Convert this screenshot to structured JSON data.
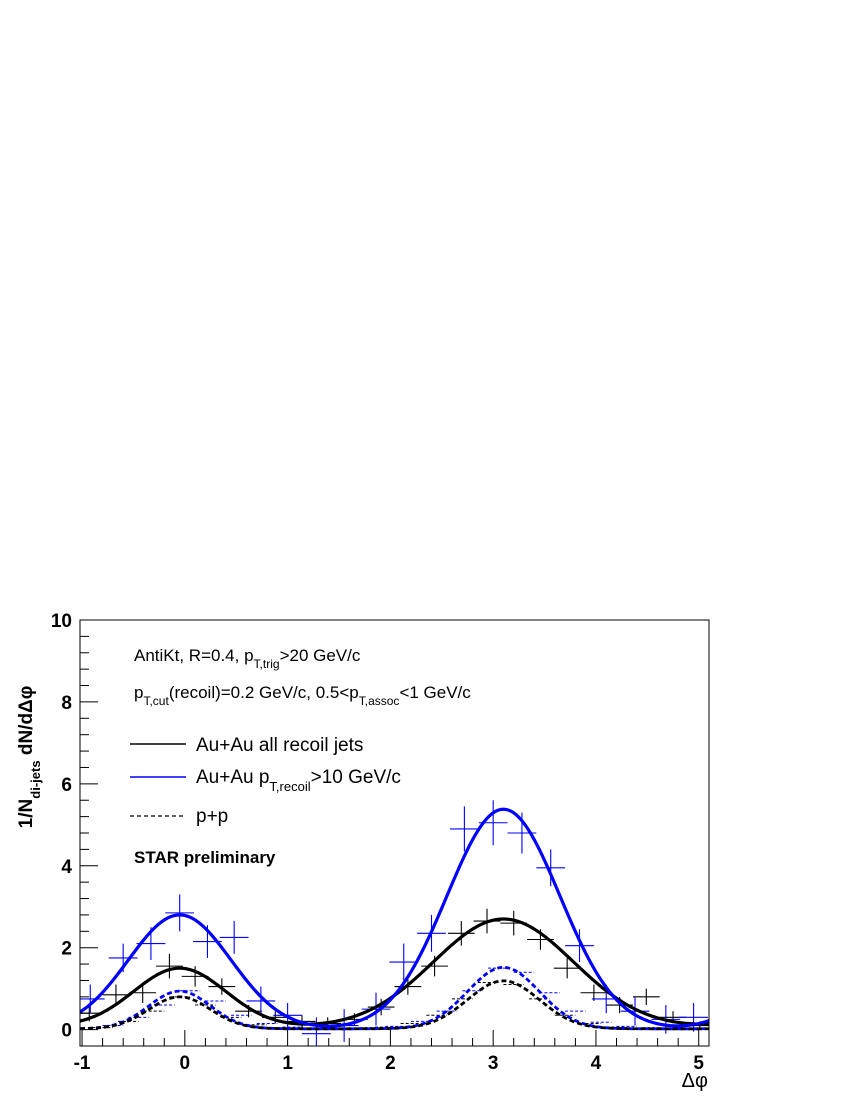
{
  "chart_data": {
    "type": "line",
    "title": "",
    "xlabel": "Δφ",
    "ylabel": {
      "main": "1/N",
      "sub": "di-jets",
      "tail": " dN/dΔφ"
    },
    "xlim": [
      -1.02,
      5.1
    ],
    "ylim": [
      -0.4,
      10
    ],
    "x_ticks": [
      -1,
      0,
      1,
      2,
      3,
      4,
      5
    ],
    "x_tick_labels": [
      "-1",
      "0",
      "1",
      "2",
      "3",
      "4",
      "5"
    ],
    "y_ticks": [
      0,
      2,
      4,
      6,
      8,
      10
    ],
    "y_tick_labels": [
      "0",
      "2",
      "4",
      "6",
      "8",
      "10"
    ],
    "info_line1": {
      "a": "AntiKt, R=0.4, p",
      "sub": "T,trig",
      "b": ">20 GeV/c"
    },
    "info_line2": {
      "a": "p",
      "sub1": "T,cut",
      "b": "(recoil)=0.2 GeV/c, 0.5<p",
      "sub2": "T,assoc",
      "c": "<1 GeV/c"
    },
    "preliminary_label": "STAR preliminary",
    "legend": [
      {
        "text": "Au+Au all recoil jets",
        "color": "#000000",
        "style": "solid"
      },
      {
        "text_a": "Au+Au p",
        "text_sub": "T,recoil",
        "text_b": ">10 GeV/c",
        "color": "#0000ff",
        "style": "solid"
      },
      {
        "text": "p+p",
        "color": "#000000",
        "style": "dashed"
      }
    ],
    "points_black": {
      "color": "#000000",
      "x": [
        -0.93,
        -0.67,
        -0.41,
        -0.15,
        0.1,
        0.36,
        0.62,
        0.88,
        1.14,
        1.39,
        1.65,
        1.91,
        2.17,
        2.43,
        2.69,
        2.94,
        3.2,
        3.46,
        3.72,
        3.98,
        4.23,
        4.49,
        4.75,
        5.01
      ],
      "y": [
        0.4,
        0.85,
        0.9,
        1.55,
        1.3,
        1.05,
        0.45,
        0.3,
        0.2,
        0.15,
        0.25,
        0.55,
        1.05,
        1.55,
        2.35,
        2.65,
        2.6,
        2.2,
        1.5,
        0.9,
        0.6,
        0.8,
        0.3,
        0.1
      ],
      "ex": 0.13,
      "ey": [
        0.2,
        0.25,
        0.25,
        0.3,
        0.25,
        0.2,
        0.15,
        0.15,
        0.15,
        0.15,
        0.15,
        0.2,
        0.2,
        0.25,
        0.3,
        0.3,
        0.3,
        0.25,
        0.25,
        0.2,
        0.2,
        0.2,
        0.15,
        0.1
      ]
    },
    "points_blue": {
      "color": "#0000ff",
      "x": [
        -0.92,
        -0.6,
        -0.33,
        -0.05,
        0.22,
        0.48,
        0.74,
        1.0,
        1.28,
        1.55,
        1.86,
        2.13,
        2.4,
        2.72,
        3.0,
        3.28,
        3.56,
        3.84,
        4.1,
        4.38,
        4.68,
        4.95
      ],
      "y": [
        0.75,
        1.75,
        2.1,
        2.85,
        2.15,
        2.25,
        0.7,
        0.35,
        -0.1,
        0.1,
        0.5,
        1.65,
        2.35,
        4.9,
        5.05,
        4.8,
        3.95,
        2.05,
        0.75,
        0.45,
        0.25,
        0.3
      ],
      "ex": 0.14,
      "ey": [
        0.35,
        0.35,
        0.4,
        0.45,
        0.4,
        0.4,
        0.35,
        0.3,
        0.4,
        0.4,
        0.4,
        0.45,
        0.45,
        0.55,
        0.55,
        0.5,
        0.45,
        0.4,
        0.35,
        0.35,
        0.35,
        0.35
      ]
    },
    "pp_black": {
      "color": "#000000",
      "x": [
        -0.8,
        -0.55,
        -0.3,
        -0.05,
        0.2,
        0.45,
        0.7,
        0.95,
        1.2,
        1.45,
        1.7,
        1.95,
        2.2,
        2.45,
        2.7,
        2.95,
        3.2,
        3.45,
        3.7,
        3.95,
        4.2,
        4.45,
        4.7,
        4.95
      ],
      "y": [
        0.05,
        0.2,
        0.45,
        0.8,
        0.6,
        0.3,
        0.12,
        0.05,
        0.03,
        0.03,
        0.03,
        0.06,
        0.15,
        0.35,
        0.75,
        1.15,
        1.1,
        0.75,
        0.35,
        0.15,
        0.06,
        0.04,
        0.03,
        0.03
      ],
      "ex": 0.1
    },
    "pp_blue": {
      "color": "#0000ff",
      "x": [
        -0.7,
        -0.45,
        -0.2,
        0.05,
        0.3,
        0.55,
        0.8,
        1.05,
        1.3,
        1.55,
        1.8,
        2.05,
        2.3,
        2.55,
        2.8,
        3.05,
        3.3,
        3.55,
        3.8,
        4.05,
        4.3,
        4.55,
        4.8,
        5.05
      ],
      "y": [
        0.1,
        0.3,
        0.6,
        0.95,
        0.7,
        0.35,
        0.15,
        0.06,
        0.04,
        0.04,
        0.05,
        0.08,
        0.2,
        0.45,
        0.95,
        1.5,
        1.4,
        0.9,
        0.45,
        0.18,
        0.08,
        0.05,
        0.04,
        0.04
      ],
      "ex": 0.1
    },
    "curves": [
      {
        "name": "Au+Au all recoil jets",
        "color": "#000000",
        "style": "solid",
        "width": 3.2,
        "baseline": 0.05,
        "peaks": [
          {
            "mu": -0.05,
            "amp": 1.45,
            "sigma": 0.45
          },
          {
            "mu": 3.1,
            "amp": 2.65,
            "sigma": 0.68
          }
        ]
      },
      {
        "name": "Au+Au pT,recoil>10 GeV/c",
        "color": "#0000ff",
        "style": "solid",
        "width": 3.2,
        "baseline": 0.0,
        "peaks": [
          {
            "mu": -0.05,
            "amp": 2.8,
            "sigma": 0.5
          },
          {
            "mu": 3.1,
            "amp": 5.38,
            "sigma": 0.55
          }
        ]
      },
      {
        "name": "p+p",
        "color": "#0000ff",
        "style": "dashed",
        "width": 2.8,
        "baseline": 0.02,
        "peaks": [
          {
            "mu": -0.05,
            "amp": 0.92,
            "sigma": 0.3
          },
          {
            "mu": 3.1,
            "amp": 1.5,
            "sigma": 0.35
          }
        ]
      },
      {
        "name": "p+p",
        "color": "#000000",
        "style": "dashed",
        "width": 2.8,
        "baseline": 0.02,
        "peaks": [
          {
            "mu": -0.05,
            "amp": 0.78,
            "sigma": 0.3
          },
          {
            "mu": 3.1,
            "amp": 1.17,
            "sigma": 0.35
          }
        ]
      }
    ]
  }
}
